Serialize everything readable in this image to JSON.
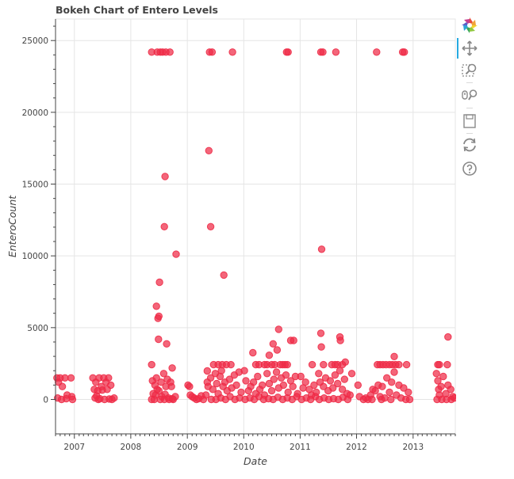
{
  "chart_data": {
    "type": "scatter",
    "title": "Bokeh Chart of Entero Levels",
    "xlabel": "Date",
    "ylabel": "EnteroCount",
    "x_type": "datetime",
    "xlim": [
      "2006-09-01",
      "2013-10-01"
    ],
    "ylim": [
      -2400,
      26500
    ],
    "x_ticks": [
      "2007",
      "2008",
      "2009",
      "2010",
      "2011",
      "2012",
      "2013"
    ],
    "y_ticks": [
      0,
      5000,
      10000,
      15000,
      20000,
      25000
    ],
    "grid": true,
    "marker_color": "#ee2b47",
    "series": [
      {
        "points": [
          [
            "2008-05-15",
            24196
          ],
          [
            "2008-06-20",
            24196
          ],
          [
            "2008-07-10",
            24196
          ],
          [
            "2008-07-25",
            24196
          ],
          [
            "2008-08-15",
            24196
          ],
          [
            "2008-09-10",
            24196
          ],
          [
            "2009-05-25",
            24196
          ],
          [
            "2009-06-10",
            24196
          ],
          [
            "2009-10-20",
            24196
          ],
          [
            "2010-10-05",
            24196
          ],
          [
            "2010-10-15",
            24196
          ],
          [
            "2011-05-15",
            24196
          ],
          [
            "2011-05-28",
            24196
          ],
          [
            "2011-08-20",
            24196
          ],
          [
            "2012-05-10",
            24196
          ],
          [
            "2012-10-25",
            24196
          ],
          [
            "2012-11-05",
            24196
          ],
          [
            "2009-05-20",
            17329
          ],
          [
            "2008-08-10",
            15531
          ],
          [
            "2008-08-05",
            12033
          ],
          [
            "2009-06-01",
            12033
          ],
          [
            "2008-10-20",
            10112
          ],
          [
            "2011-05-20",
            10462
          ],
          [
            "2009-08-25",
            8664
          ],
          [
            "2008-07-05",
            8164
          ],
          [
            "2008-06-15",
            6488
          ],
          [
            "2008-07-01",
            5794
          ],
          [
            "2008-06-25",
            5652
          ],
          [
            "2008-06-28",
            4192
          ],
          [
            "2008-08-20",
            3873
          ],
          [
            "2008-09-25",
            2187
          ],
          [
            "2008-05-15",
            2419
          ],
          [
            "2010-06-15",
            3076
          ],
          [
            "2010-07-10",
            3873
          ],
          [
            "2010-08-05",
            3448
          ],
          [
            "2010-08-15",
            4884
          ],
          [
            "2010-11-01",
            4106
          ],
          [
            "2010-11-20",
            4106
          ],
          [
            "2011-05-15",
            4611
          ],
          [
            "2011-05-18",
            3654
          ],
          [
            "2011-09-15",
            4352
          ],
          [
            "2011-09-18",
            4106
          ],
          [
            "2010-03-01",
            3255
          ],
          [
            "2013-08-15",
            4352
          ],
          [
            "2012-09-01",
            2987
          ],
          [
            "2009-05-10",
            1986
          ],
          [
            "2009-06-20",
            2419
          ],
          [
            "2009-07-20",
            2419
          ],
          [
            "2009-08-15",
            2419
          ],
          [
            "2009-09-10",
            2419
          ],
          [
            "2009-10-10",
            2419
          ],
          [
            "2010-03-20",
            2419
          ],
          [
            "2010-04-10",
            2419
          ],
          [
            "2010-05-15",
            2419
          ],
          [
            "2010-06-01",
            2419
          ],
          [
            "2010-07-01",
            2419
          ],
          [
            "2010-07-20",
            2419
          ],
          [
            "2010-08-25",
            2419
          ],
          [
            "2010-09-10",
            2419
          ],
          [
            "2010-09-25",
            2419
          ],
          [
            "2010-10-10",
            2419
          ],
          [
            "2011-03-20",
            2419
          ],
          [
            "2011-06-01",
            2419
          ],
          [
            "2011-07-25",
            2419
          ],
          [
            "2011-08-15",
            2419
          ],
          [
            "2011-09-01",
            2419
          ],
          [
            "2011-10-01",
            2419
          ],
          [
            "2012-05-15",
            2419
          ],
          [
            "2012-06-01",
            2419
          ],
          [
            "2012-06-20",
            2419
          ],
          [
            "2012-07-10",
            2419
          ],
          [
            "2012-08-01",
            2419
          ],
          [
            "2012-08-20",
            2419
          ],
          [
            "2012-09-10",
            2419
          ],
          [
            "2012-10-01",
            2419
          ],
          [
            "2012-11-20",
            2419
          ],
          [
            "2013-06-10",
            2419
          ],
          [
            "2013-06-20",
            2419
          ],
          [
            "2013-08-10",
            2419
          ],
          [
            "2006-09-10",
            1500
          ],
          [
            "2006-09-20",
            1200
          ],
          [
            "2006-10-01",
            1500
          ],
          [
            "2006-10-15",
            900
          ],
          [
            "2006-11-01",
            1500
          ],
          [
            "2006-11-15",
            300
          ],
          [
            "2006-12-10",
            1500
          ],
          [
            "2006-12-15",
            200
          ],
          [
            "2006-09-15",
            100
          ],
          [
            "2006-10-10",
            0
          ],
          [
            "2006-11-10",
            50
          ],
          [
            "2006-12-20",
            0
          ],
          [
            "2007-05-01",
            1500
          ],
          [
            "2007-05-20",
            1200
          ],
          [
            "2007-06-10",
            1500
          ],
          [
            "2007-06-25",
            900
          ],
          [
            "2007-07-10",
            1500
          ],
          [
            "2007-07-25",
            1200
          ],
          [
            "2007-08-10",
            1500
          ],
          [
            "2007-08-25",
            1000
          ],
          [
            "2007-05-10",
            700
          ],
          [
            "2007-06-01",
            600
          ],
          [
            "2007-07-01",
            650
          ],
          [
            "2007-08-01",
            700
          ],
          [
            "2007-05-15",
            100
          ],
          [
            "2007-06-15",
            50
          ],
          [
            "2007-07-15",
            0
          ],
          [
            "2007-08-15",
            30
          ],
          [
            "2007-09-01",
            0
          ],
          [
            "2007-09-15",
            100
          ],
          [
            "2007-05-25",
            250
          ],
          [
            "2007-06-05",
            0
          ],
          [
            "2008-05-20",
            1300
          ],
          [
            "2008-06-05",
            1000
          ],
          [
            "2008-06-15",
            1500
          ],
          [
            "2008-07-15",
            1200
          ],
          [
            "2008-08-01",
            1800
          ],
          [
            "2008-08-25",
            1400
          ],
          [
            "2008-09-15",
            1200
          ],
          [
            "2008-09-20",
            900
          ],
          [
            "2008-05-25",
            400
          ],
          [
            "2008-06-10",
            300
          ],
          [
            "2008-07-01",
            600
          ],
          [
            "2008-07-20",
            200
          ],
          [
            "2008-08-10",
            350
          ],
          [
            "2008-09-01",
            100
          ],
          [
            "2008-09-25",
            50
          ],
          [
            "2008-05-15",
            0
          ],
          [
            "2008-06-01",
            0
          ],
          [
            "2008-07-10",
            0
          ],
          [
            "2008-08-05",
            0
          ],
          [
            "2008-09-05",
            0
          ],
          [
            "2008-10-01",
            0
          ],
          [
            "2008-10-15",
            200
          ],
          [
            "2008-06-20",
            700
          ],
          [
            "2008-08-15",
            900
          ],
          [
            "2009-01-05",
            1000
          ],
          [
            "2009-01-15",
            900
          ],
          [
            "2009-01-20",
            300
          ],
          [
            "2009-02-01",
            200
          ],
          [
            "2009-02-15",
            100
          ],
          [
            "2009-03-01",
            0
          ],
          [
            "2009-03-15",
            50
          ],
          [
            "2009-04-01",
            250
          ],
          [
            "2009-04-15",
            0
          ],
          [
            "2009-05-01",
            300
          ],
          [
            "2009-05-10",
            1200
          ],
          [
            "2009-05-15",
            900
          ],
          [
            "2009-06-01",
            1500
          ],
          [
            "2009-06-15",
            700
          ],
          [
            "2009-07-01",
            1800
          ],
          [
            "2009-07-10",
            1100
          ],
          [
            "2009-07-20",
            400
          ],
          [
            "2009-08-01",
            1600
          ],
          [
            "2009-08-10",
            2000
          ],
          [
            "2009-08-20",
            900
          ],
          [
            "2009-09-01",
            1200
          ],
          [
            "2009-09-15",
            600
          ],
          [
            "2009-10-01",
            1400
          ],
          [
            "2009-10-15",
            800
          ],
          [
            "2009-11-01",
            1700
          ],
          [
            "2009-11-15",
            1000
          ],
          [
            "2009-12-01",
            1900
          ],
          [
            "2009-12-15",
            500
          ],
          [
            "2009-06-05",
            0
          ],
          [
            "2009-07-05",
            0
          ],
          [
            "2009-08-05",
            100
          ],
          [
            "2009-09-05",
            0
          ],
          [
            "2009-10-05",
            200
          ],
          [
            "2009-11-05",
            0
          ],
          [
            "2009-12-05",
            100
          ],
          [
            "2010-01-05",
            2000
          ],
          [
            "2010-01-15",
            1300
          ],
          [
            "2010-02-01",
            600
          ],
          [
            "2010-02-15",
            900
          ],
          [
            "2010-03-05",
            1200
          ],
          [
            "2010-03-20",
            400
          ],
          [
            "2010-04-01",
            1600
          ],
          [
            "2010-04-15",
            700
          ],
          [
            "2010-05-01",
            1000
          ],
          [
            "2010-05-15",
            300
          ],
          [
            "2010-06-01",
            1800
          ],
          [
            "2010-06-15",
            1100
          ],
          [
            "2010-07-01",
            600
          ],
          [
            "2010-07-15",
            1400
          ],
          [
            "2010-08-01",
            1900
          ],
          [
            "2010-08-15",
            800
          ],
          [
            "2010-09-01",
            1500
          ],
          [
            "2010-09-15",
            1000
          ],
          [
            "2010-10-01",
            1700
          ],
          [
            "2010-10-15",
            500
          ],
          [
            "2010-11-01",
            1300
          ],
          [
            "2010-11-15",
            900
          ],
          [
            "2010-12-01",
            1600
          ],
          [
            "2010-12-15",
            400
          ],
          [
            "2010-01-10",
            0
          ],
          [
            "2010-02-10",
            100
          ],
          [
            "2010-03-10",
            0
          ],
          [
            "2010-04-10",
            200
          ],
          [
            "2010-05-10",
            0
          ],
          [
            "2010-06-10",
            50
          ],
          [
            "2010-07-10",
            0
          ],
          [
            "2010-08-10",
            150
          ],
          [
            "2010-09-10",
            0
          ],
          [
            "2010-10-10",
            100
          ],
          [
            "2010-11-10",
            0
          ],
          [
            "2010-12-10",
            200
          ],
          [
            "2011-01-05",
            1600
          ],
          [
            "2011-01-20",
            800
          ],
          [
            "2011-02-05",
            1200
          ],
          [
            "2011-03-01",
            700
          ],
          [
            "2011-03-15",
            300
          ],
          [
            "2011-04-01",
            1000
          ],
          [
            "2011-04-15",
            500
          ],
          [
            "2011-05-01",
            1800
          ],
          [
            "2011-05-10",
            1200
          ],
          [
            "2011-06-01",
            900
          ],
          [
            "2011-06-15",
            1500
          ],
          [
            "2011-07-01",
            600
          ],
          [
            "2011-07-15",
            1300
          ],
          [
            "2011-08-01",
            800
          ],
          [
            "2011-08-15",
            1700
          ],
          [
            "2011-09-01",
            1100
          ],
          [
            "2011-09-15",
            2000
          ],
          [
            "2011-10-01",
            700
          ],
          [
            "2011-10-15",
            1400
          ],
          [
            "2011-11-01",
            400
          ],
          [
            "2011-01-10",
            0
          ],
          [
            "2011-02-10",
            100
          ],
          [
            "2011-03-10",
            0
          ],
          [
            "2011-04-10",
            200
          ],
          [
            "2011-05-05",
            0
          ],
          [
            "2011-06-05",
            100
          ],
          [
            "2011-07-05",
            0
          ],
          [
            "2011-08-05",
            50
          ],
          [
            "2011-09-05",
            0
          ],
          [
            "2011-10-05",
            150
          ],
          [
            "2011-11-05",
            0
          ],
          [
            "2011-11-20",
            300
          ],
          [
            "2011-10-20",
            2600
          ],
          [
            "2011-12-01",
            1800
          ],
          [
            "2012-01-10",
            1000
          ],
          [
            "2012-01-20",
            200
          ],
          [
            "2012-02-15",
            0
          ],
          [
            "2012-03-01",
            100
          ],
          [
            "2012-03-15",
            0
          ],
          [
            "2012-04-01",
            300
          ],
          [
            "2012-04-15",
            700
          ],
          [
            "2012-05-01",
            600
          ],
          [
            "2012-05-20",
            1000
          ],
          [
            "2012-06-01",
            200
          ],
          [
            "2012-06-15",
            900
          ],
          [
            "2012-07-01",
            100
          ],
          [
            "2012-07-15",
            1500
          ],
          [
            "2012-08-01",
            500
          ],
          [
            "2012-08-15",
            1200
          ],
          [
            "2012-09-01",
            1900
          ],
          [
            "2012-09-15",
            300
          ],
          [
            "2012-10-01",
            1000
          ],
          [
            "2012-10-15",
            100
          ],
          [
            "2012-11-01",
            800
          ],
          [
            "2012-11-15",
            0
          ],
          [
            "2012-12-01",
            500
          ],
          [
            "2012-12-10",
            0
          ],
          [
            "2012-04-10",
            0
          ],
          [
            "2012-06-10",
            0
          ],
          [
            "2012-08-10",
            0
          ],
          [
            "2013-06-01",
            1800
          ],
          [
            "2013-06-10",
            1300
          ],
          [
            "2013-06-15",
            700
          ],
          [
            "2013-06-20",
            300
          ],
          [
            "2013-07-01",
            900
          ],
          [
            "2013-07-15",
            1600
          ],
          [
            "2013-08-01",
            400
          ],
          [
            "2013-08-15",
            1000
          ],
          [
            "2013-09-01",
            700
          ],
          [
            "2013-09-15",
            200
          ],
          [
            "2013-06-05",
            0
          ],
          [
            "2013-07-05",
            0
          ],
          [
            "2013-08-05",
            0
          ],
          [
            "2013-09-05",
            0
          ],
          [
            "2013-09-25",
            100
          ]
        ]
      }
    ]
  },
  "toolbar": {
    "tools": [
      "bokeh-logo-icon",
      "pan-icon",
      "box-zoom-icon",
      "wheel-zoom-icon",
      "save-icon",
      "reset-icon",
      "help-icon"
    ]
  }
}
